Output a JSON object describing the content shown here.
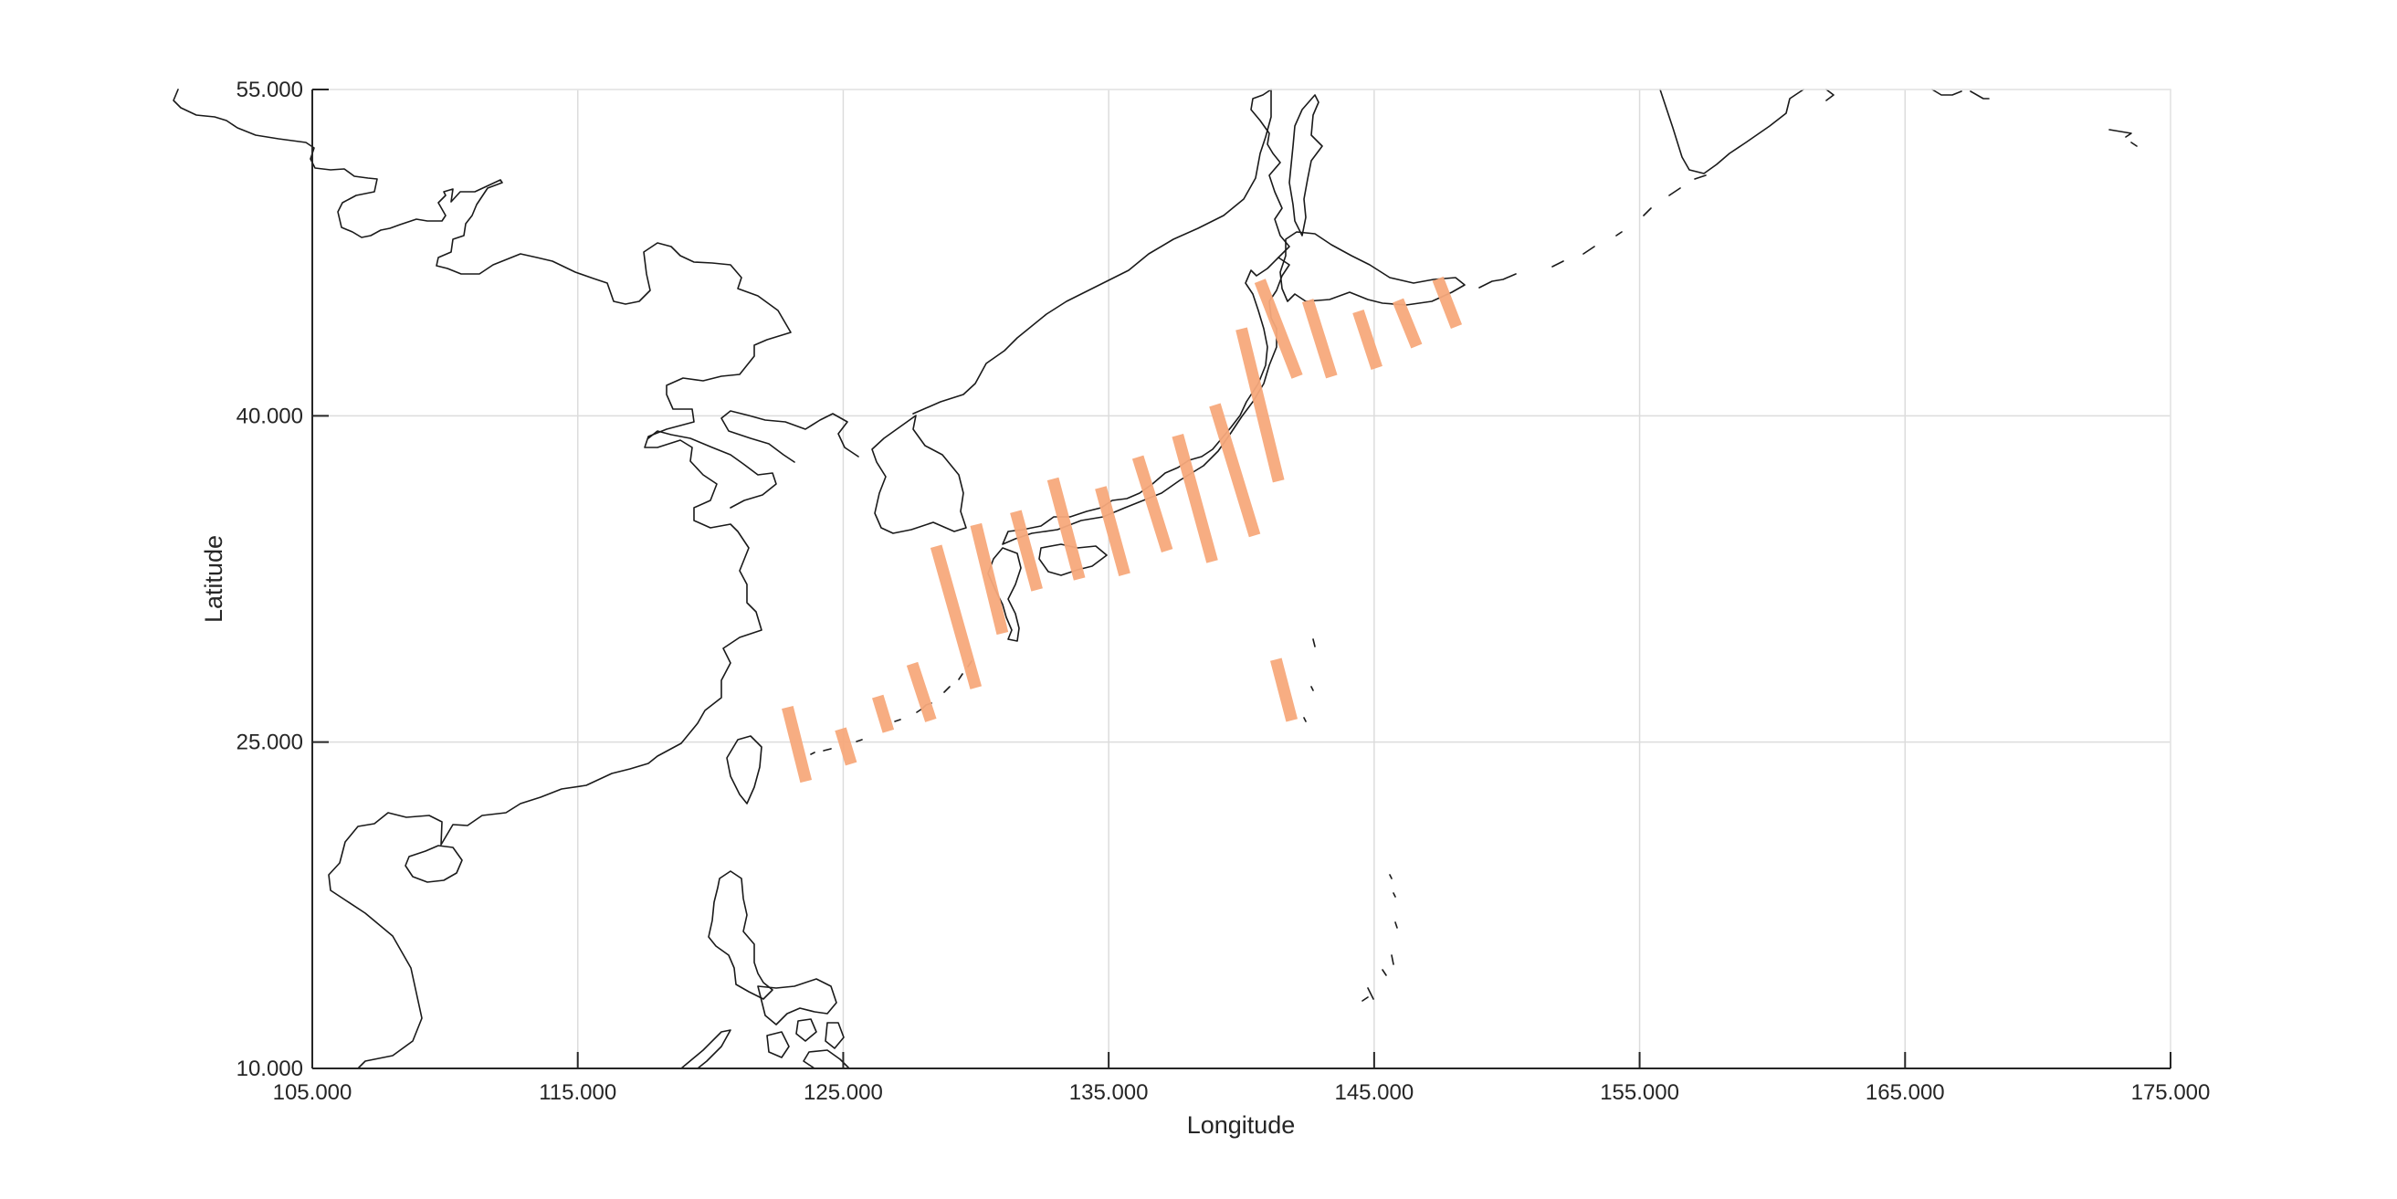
{
  "chart_data": {
    "type": "map",
    "xlabel": "Longitude",
    "ylabel": "Latitude",
    "xlim": [
      105,
      175
    ],
    "ylim": [
      10,
      55
    ],
    "xticks": [
      105,
      115,
      125,
      135,
      145,
      155,
      165,
      175
    ],
    "yticks": [
      10,
      25,
      40,
      55
    ],
    "xtick_labels": [
      "105.000",
      "115.000",
      "125.000",
      "135.000",
      "145.000",
      "155.000",
      "165.000",
      "175.000"
    ],
    "ytick_labels": [
      "10.000",
      "25.000",
      "40.000",
      "55.000"
    ],
    "grid": true,
    "swath_color": "#F7A97C",
    "swaths": [
      {
        "lon1": 122.9,
        "lat1": 26.6,
        "lon2": 123.6,
        "lat2": 23.2
      },
      {
        "lon1": 124.9,
        "lat1": 25.6,
        "lon2": 125.3,
        "lat2": 24.0
      },
      {
        "lon1": 126.3,
        "lat1": 27.1,
        "lon2": 126.7,
        "lat2": 25.5
      },
      {
        "lon1": 127.6,
        "lat1": 28.6,
        "lon2": 128.3,
        "lat2": 26.0
      },
      {
        "lon1": 128.5,
        "lat1": 34.0,
        "lon2": 130.0,
        "lat2": 27.5
      },
      {
        "lon1": 130.0,
        "lat1": 35.0,
        "lon2": 131.0,
        "lat2": 30.0
      },
      {
        "lon1": 131.5,
        "lat1": 35.6,
        "lon2": 132.3,
        "lat2": 32.0
      },
      {
        "lon1": 132.9,
        "lat1": 37.1,
        "lon2": 133.9,
        "lat2": 32.5
      },
      {
        "lon1": 134.7,
        "lat1": 36.7,
        "lon2": 135.6,
        "lat2": 32.7
      },
      {
        "lon1": 136.1,
        "lat1": 38.1,
        "lon2": 137.2,
        "lat2": 33.8
      },
      {
        "lon1": 137.6,
        "lat1": 39.1,
        "lon2": 138.9,
        "lat2": 33.3
      },
      {
        "lon1": 139.0,
        "lat1": 40.5,
        "lon2": 140.5,
        "lat2": 34.5
      },
      {
        "lon1": 140.0,
        "lat1": 44.0,
        "lon2": 141.4,
        "lat2": 37.0
      },
      {
        "lon1": 140.7,
        "lat1": 46.2,
        "lon2": 142.1,
        "lat2": 41.8
      },
      {
        "lon1": 141.3,
        "lat1": 28.8,
        "lon2": 141.9,
        "lat2": 26.0
      },
      {
        "lon1": 142.5,
        "lat1": 45.3,
        "lon2": 143.4,
        "lat2": 41.8
      },
      {
        "lon1": 144.4,
        "lat1": 44.8,
        "lon2": 145.1,
        "lat2": 42.2
      },
      {
        "lon1": 145.9,
        "lat1": 45.3,
        "lon2": 146.6,
        "lat2": 43.2
      },
      {
        "lon1": 147.4,
        "lat1": 46.3,
        "lon2": 148.1,
        "lat2": 44.1
      }
    ]
  }
}
